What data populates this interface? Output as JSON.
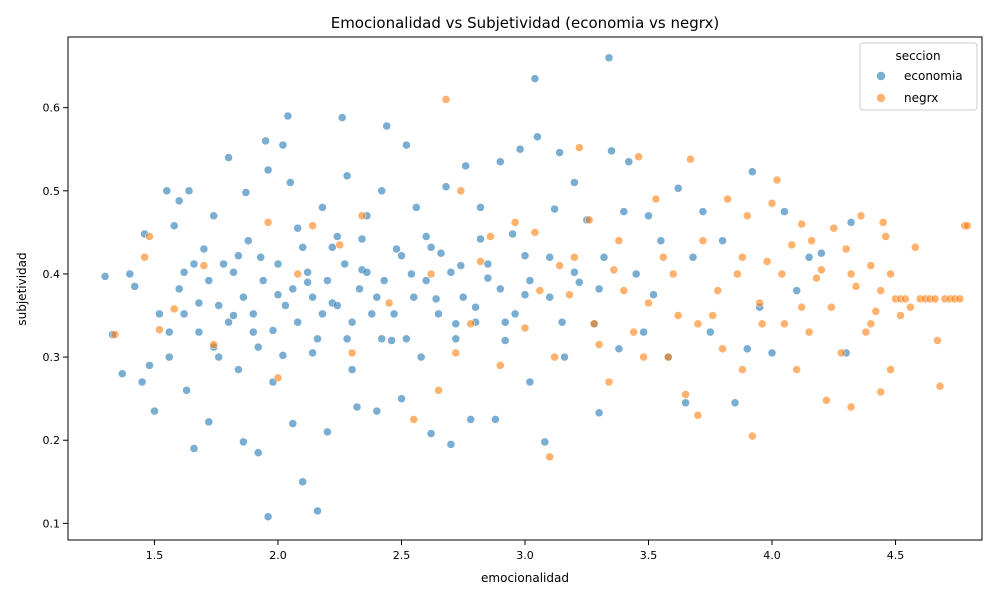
{
  "chart_data": {
    "type": "scatter",
    "title": "Emocionalidad vs Subjetividad (economia vs negrx)",
    "xlabel": "emocionalidad",
    "ylabel": "subjetividad",
    "xlim": [
      1.15,
      4.85
    ],
    "ylim": [
      0.08,
      0.685
    ],
    "xticks": [
      "1.5",
      "2.0",
      "2.5",
      "3.0",
      "3.5",
      "4.0",
      "4.5"
    ],
    "yticks": [
      "0.1",
      "0.2",
      "0.3",
      "0.4",
      "0.5",
      "0.6"
    ],
    "grid": false,
    "legend": {
      "title": "seccion",
      "placement": "top-right",
      "entries": [
        "economia",
        "negrx"
      ]
    },
    "colors": {
      "economia": "#1f77b4",
      "negrx": "#ff7f0e"
    },
    "series": [
      {
        "name": "economia",
        "points": [
          [
            1.3,
            0.397
          ],
          [
            1.33,
            0.327
          ],
          [
            1.37,
            0.28
          ],
          [
            1.4,
            0.4
          ],
          [
            1.42,
            0.385
          ],
          [
            1.45,
            0.27
          ],
          [
            1.46,
            0.448
          ],
          [
            1.48,
            0.29
          ],
          [
            1.5,
            0.235
          ],
          [
            1.52,
            0.352
          ],
          [
            1.55,
            0.5
          ],
          [
            1.56,
            0.33
          ],
          [
            1.58,
            0.458
          ],
          [
            1.6,
            0.488
          ],
          [
            1.62,
            0.402
          ],
          [
            1.63,
            0.26
          ],
          [
            1.64,
            0.5
          ],
          [
            1.66,
            0.19
          ],
          [
            1.68,
            0.365
          ],
          [
            1.7,
            0.43
          ],
          [
            1.72,
            0.222
          ],
          [
            1.74,
            0.47
          ],
          [
            1.76,
            0.3
          ],
          [
            1.78,
            0.412
          ],
          [
            1.8,
            0.54
          ],
          [
            1.82,
            0.35
          ],
          [
            1.84,
            0.285
          ],
          [
            1.86,
            0.198
          ],
          [
            1.87,
            0.498
          ],
          [
            1.88,
            0.44
          ],
          [
            1.9,
            0.33
          ],
          [
            1.92,
            0.185
          ],
          [
            1.93,
            0.42
          ],
          [
            1.95,
            0.56
          ],
          [
            1.96,
            0.525
          ],
          [
            1.96,
            0.108
          ],
          [
            1.98,
            0.27
          ],
          [
            2.0,
            0.375
          ],
          [
            2.02,
            0.555
          ],
          [
            2.04,
            0.59
          ],
          [
            2.05,
            0.51
          ],
          [
            2.06,
            0.22
          ],
          [
            2.08,
            0.455
          ],
          [
            2.1,
            0.15
          ],
          [
            2.12,
            0.39
          ],
          [
            2.14,
            0.305
          ],
          [
            2.16,
            0.115
          ],
          [
            2.18,
            0.48
          ],
          [
            2.2,
            0.21
          ],
          [
            2.22,
            0.365
          ],
          [
            2.24,
            0.445
          ],
          [
            2.26,
            0.588
          ],
          [
            2.28,
            0.518
          ],
          [
            2.3,
            0.285
          ],
          [
            2.32,
            0.24
          ],
          [
            2.34,
            0.405
          ],
          [
            2.36,
            0.47
          ],
          [
            2.38,
            0.352
          ],
          [
            2.4,
            0.235
          ],
          [
            2.42,
            0.5
          ],
          [
            2.44,
            0.578
          ],
          [
            2.46,
            0.32
          ],
          [
            2.48,
            0.43
          ],
          [
            2.5,
            0.25
          ],
          [
            2.52,
            0.555
          ],
          [
            2.54,
            0.4
          ],
          [
            2.56,
            0.48
          ],
          [
            2.58,
            0.3
          ],
          [
            2.6,
            0.445
          ],
          [
            2.62,
            0.208
          ],
          [
            2.64,
            0.37
          ],
          [
            2.66,
            0.425
          ],
          [
            2.68,
            0.505
          ],
          [
            2.7,
            0.195
          ],
          [
            2.72,
            0.34
          ],
          [
            2.74,
            0.41
          ],
          [
            2.76,
            0.53
          ],
          [
            2.78,
            0.225
          ],
          [
            2.8,
            0.36
          ],
          [
            2.82,
            0.48
          ],
          [
            2.85,
            0.395
          ],
          [
            2.88,
            0.225
          ],
          [
            2.9,
            0.535
          ],
          [
            2.92,
            0.32
          ],
          [
            2.95,
            0.448
          ],
          [
            2.98,
            0.55
          ],
          [
            3.0,
            0.375
          ],
          [
            3.02,
            0.27
          ],
          [
            3.04,
            0.635
          ],
          [
            3.05,
            0.565
          ],
          [
            3.08,
            0.198
          ],
          [
            3.1,
            0.42
          ],
          [
            3.12,
            0.478
          ],
          [
            3.14,
            0.546
          ],
          [
            3.16,
            0.3
          ],
          [
            3.2,
            0.51
          ],
          [
            3.22,
            0.39
          ],
          [
            3.25,
            0.465
          ],
          [
            3.28,
            0.34
          ],
          [
            3.3,
            0.233
          ],
          [
            3.32,
            0.42
          ],
          [
            3.34,
            0.66
          ],
          [
            3.35,
            0.548
          ],
          [
            3.38,
            0.31
          ],
          [
            3.4,
            0.475
          ],
          [
            3.42,
            0.535
          ],
          [
            3.45,
            0.4
          ],
          [
            3.48,
            0.33
          ],
          [
            3.5,
            0.47
          ],
          [
            3.52,
            0.375
          ],
          [
            3.55,
            0.44
          ],
          [
            3.58,
            0.3
          ],
          [
            3.62,
            0.503
          ],
          [
            3.65,
            0.245
          ],
          [
            3.68,
            0.42
          ],
          [
            3.72,
            0.475
          ],
          [
            3.75,
            0.33
          ],
          [
            3.8,
            0.44
          ],
          [
            3.85,
            0.245
          ],
          [
            3.9,
            0.31
          ],
          [
            3.92,
            0.523
          ],
          [
            3.95,
            0.36
          ],
          [
            4.0,
            0.305
          ],
          [
            4.05,
            0.475
          ],
          [
            4.1,
            0.38
          ],
          [
            4.15,
            0.42
          ],
          [
            4.2,
            0.425
          ],
          [
            4.3,
            0.305
          ],
          [
            4.32,
            0.462
          ],
          [
            1.56,
            0.3
          ],
          [
            1.62,
            0.352
          ],
          [
            1.68,
            0.33
          ],
          [
            1.72,
            0.392
          ],
          [
            1.76,
            0.362
          ],
          [
            1.8,
            0.342
          ],
          [
            1.82,
            0.402
          ],
          [
            1.86,
            0.372
          ],
          [
            1.9,
            0.352
          ],
          [
            1.94,
            0.392
          ],
          [
            1.98,
            0.332
          ],
          [
            2.0,
            0.412
          ],
          [
            2.03,
            0.362
          ],
          [
            2.06,
            0.382
          ],
          [
            2.08,
            0.342
          ],
          [
            2.12,
            0.402
          ],
          [
            2.14,
            0.372
          ],
          [
            2.18,
            0.352
          ],
          [
            2.2,
            0.392
          ],
          [
            2.24,
            0.362
          ],
          [
            2.27,
            0.412
          ],
          [
            2.3,
            0.342
          ],
          [
            2.33,
            0.382
          ],
          [
            2.36,
            0.402
          ],
          [
            2.4,
            0.372
          ],
          [
            2.43,
            0.392
          ],
          [
            2.47,
            0.352
          ],
          [
            2.5,
            0.422
          ],
          [
            2.55,
            0.372
          ],
          [
            2.6,
            0.392
          ],
          [
            2.65,
            0.352
          ],
          [
            2.7,
            0.402
          ],
          [
            2.75,
            0.372
          ],
          [
            2.8,
            0.342
          ],
          [
            2.85,
            0.412
          ],
          [
            2.9,
            0.382
          ],
          [
            2.96,
            0.352
          ],
          [
            3.02,
            0.392
          ],
          [
            3.1,
            0.372
          ],
          [
            3.2,
            0.402
          ],
          [
            1.6,
            0.382
          ],
          [
            1.66,
            0.412
          ],
          [
            1.74,
            0.312
          ],
          [
            1.84,
            0.422
          ],
          [
            1.92,
            0.312
          ],
          [
            2.02,
            0.302
          ],
          [
            2.1,
            0.432
          ],
          [
            2.16,
            0.322
          ],
          [
            2.22,
            0.432
          ],
          [
            2.28,
            0.322
          ],
          [
            2.34,
            0.442
          ],
          [
            2.42,
            0.322
          ],
          [
            2.52,
            0.322
          ],
          [
            2.62,
            0.432
          ],
          [
            2.72,
            0.322
          ],
          [
            2.82,
            0.442
          ],
          [
            2.92,
            0.342
          ],
          [
            3.0,
            0.422
          ],
          [
            3.15,
            0.342
          ],
          [
            3.3,
            0.382
          ]
        ]
      },
      {
        "name": "negrx",
        "points": [
          [
            1.34,
            0.327
          ],
          [
            1.46,
            0.42
          ],
          [
            1.48,
            0.445
          ],
          [
            1.52,
            0.333
          ],
          [
            1.58,
            0.358
          ],
          [
            1.7,
            0.41
          ],
          [
            1.74,
            0.315
          ],
          [
            1.96,
            0.462
          ],
          [
            2.0,
            0.275
          ],
          [
            2.08,
            0.4
          ],
          [
            2.14,
            0.458
          ],
          [
            2.25,
            0.435
          ],
          [
            2.3,
            0.305
          ],
          [
            2.34,
            0.47
          ],
          [
            2.45,
            0.365
          ],
          [
            2.55,
            0.225
          ],
          [
            2.62,
            0.4
          ],
          [
            2.65,
            0.26
          ],
          [
            2.68,
            0.61
          ],
          [
            2.72,
            0.305
          ],
          [
            2.74,
            0.5
          ],
          [
            2.78,
            0.34
          ],
          [
            2.82,
            0.415
          ],
          [
            2.86,
            0.445
          ],
          [
            2.9,
            0.29
          ],
          [
            2.96,
            0.462
          ],
          [
            3.0,
            0.335
          ],
          [
            3.04,
            0.45
          ],
          [
            3.1,
            0.18
          ],
          [
            3.14,
            0.41
          ],
          [
            3.18,
            0.375
          ],
          [
            3.22,
            0.552
          ],
          [
            3.26,
            0.465
          ],
          [
            3.3,
            0.315
          ],
          [
            3.34,
            0.27
          ],
          [
            3.36,
            0.405
          ],
          [
            3.4,
            0.38
          ],
          [
            3.44,
            0.33
          ],
          [
            3.46,
            0.541
          ],
          [
            3.5,
            0.365
          ],
          [
            3.53,
            0.49
          ],
          [
            3.56,
            0.42
          ],
          [
            3.58,
            0.3
          ],
          [
            3.62,
            0.35
          ],
          [
            3.65,
            0.255
          ],
          [
            3.67,
            0.538
          ],
          [
            3.7,
            0.23
          ],
          [
            3.72,
            0.44
          ],
          [
            3.76,
            0.35
          ],
          [
            3.8,
            0.31
          ],
          [
            3.82,
            0.49
          ],
          [
            3.86,
            0.4
          ],
          [
            3.88,
            0.285
          ],
          [
            3.9,
            0.47
          ],
          [
            3.92,
            0.205
          ],
          [
            3.95,
            0.365
          ],
          [
            3.98,
            0.415
          ],
          [
            4.0,
            0.485
          ],
          [
            4.02,
            0.513
          ],
          [
            4.05,
            0.34
          ],
          [
            4.08,
            0.435
          ],
          [
            4.1,
            0.285
          ],
          [
            4.12,
            0.46
          ],
          [
            4.15,
            0.33
          ],
          [
            4.18,
            0.395
          ],
          [
            4.2,
            0.405
          ],
          [
            4.22,
            0.248
          ],
          [
            4.25,
            0.455
          ],
          [
            4.28,
            0.305
          ],
          [
            4.3,
            0.43
          ],
          [
            4.32,
            0.24
          ],
          [
            4.34,
            0.385
          ],
          [
            4.36,
            0.47
          ],
          [
            4.38,
            0.33
          ],
          [
            4.4,
            0.41
          ],
          [
            4.42,
            0.355
          ],
          [
            4.44,
            0.258
          ],
          [
            4.45,
            0.462
          ],
          [
            4.46,
            0.445
          ],
          [
            4.48,
            0.285
          ],
          [
            4.5,
            0.37
          ],
          [
            4.52,
            0.37
          ],
          [
            4.54,
            0.37
          ],
          [
            4.56,
            0.36
          ],
          [
            4.58,
            0.432
          ],
          [
            4.6,
            0.37
          ],
          [
            4.62,
            0.37
          ],
          [
            4.64,
            0.37
          ],
          [
            4.66,
            0.37
          ],
          [
            4.67,
            0.32
          ],
          [
            4.68,
            0.265
          ],
          [
            4.7,
            0.37
          ],
          [
            4.72,
            0.37
          ],
          [
            4.74,
            0.37
          ],
          [
            4.76,
            0.37
          ],
          [
            4.78,
            0.458
          ],
          [
            4.79,
            0.458
          ],
          [
            3.06,
            0.38
          ],
          [
            3.12,
            0.3
          ],
          [
            3.2,
            0.42
          ],
          [
            3.28,
            0.34
          ],
          [
            3.38,
            0.44
          ],
          [
            3.48,
            0.3
          ],
          [
            3.6,
            0.4
          ],
          [
            3.7,
            0.34
          ],
          [
            3.78,
            0.38
          ],
          [
            3.88,
            0.42
          ],
          [
            3.96,
            0.34
          ],
          [
            4.04,
            0.4
          ],
          [
            4.12,
            0.36
          ],
          [
            4.16,
            0.44
          ],
          [
            4.24,
            0.36
          ],
          [
            4.32,
            0.4
          ],
          [
            4.4,
            0.34
          ],
          [
            4.44,
            0.38
          ],
          [
            4.48,
            0.4
          ],
          [
            4.52,
            0.35
          ]
        ]
      }
    ]
  }
}
